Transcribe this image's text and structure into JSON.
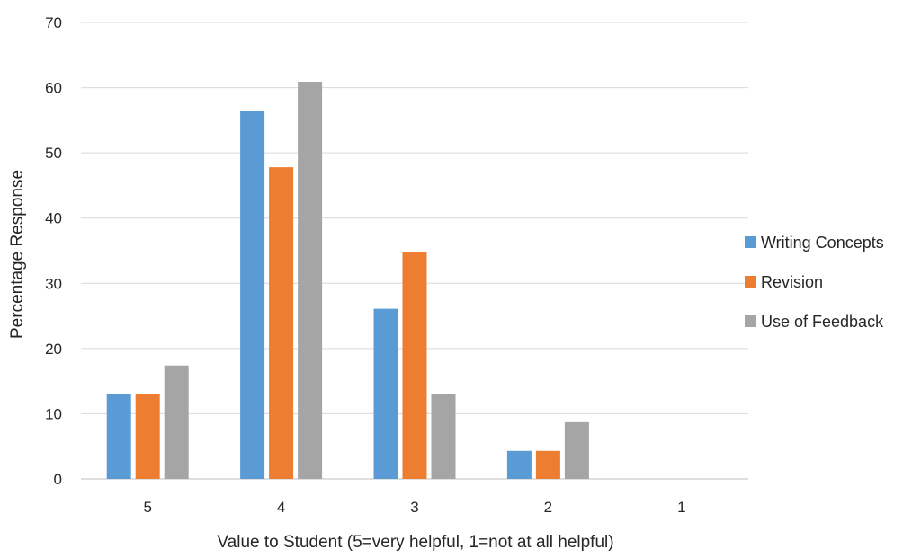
{
  "chart_data": {
    "type": "bar",
    "title": "",
    "xlabel": "Value to Student (5=very helpful, 1=not at all helpful)",
    "ylabel": "Percentage Response",
    "categories": [
      "5",
      "4",
      "3",
      "2",
      "1"
    ],
    "ylim": [
      0,
      70
    ],
    "yticks": [
      "0",
      "10",
      "20",
      "30",
      "40",
      "50",
      "60",
      "70"
    ],
    "grid": true,
    "legend_position": "right",
    "series": [
      {
        "name": "Writing Concepts",
        "color": "#5B9BD5",
        "values": [
          13.0,
          56.5,
          26.1,
          4.3,
          0
        ]
      },
      {
        "name": "Revision",
        "color": "#ED7D31",
        "values": [
          13.0,
          47.8,
          34.8,
          4.3,
          0
        ]
      },
      {
        "name": "Use of Feedback",
        "color": "#A5A5A5",
        "values": [
          17.4,
          60.9,
          13.0,
          8.7,
          0
        ]
      }
    ]
  }
}
